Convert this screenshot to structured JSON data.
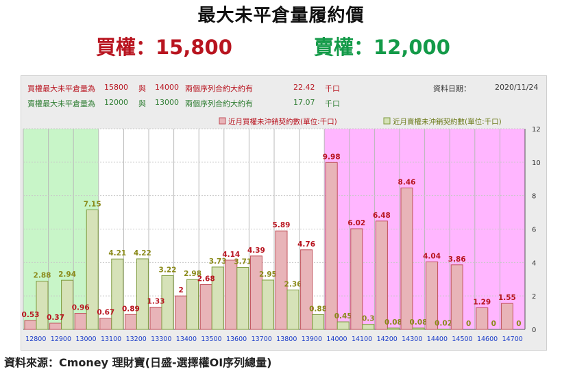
{
  "header": {
    "title": "最大未平倉量履約價",
    "call_headline": "買權：15,800",
    "put_headline": "賣權：12,000"
  },
  "info": {
    "call_row": [
      "買權最大未平倉量為",
      "15800",
      "與",
      "14000",
      "兩個序列合約大約有",
      "22.42",
      "千口"
    ],
    "put_row": [
      "賣權最大未平倉量為",
      "12000",
      "與",
      "13000",
      "兩個序列合約大約有",
      "17.07",
      "千口"
    ],
    "date_label": "資料日期：",
    "date_value": "2020/11/24"
  },
  "footer": {
    "source": "資料來源：Cmoney 理財寶(日盛-選擇權OI序列總量)"
  },
  "colors": {
    "call_fill": "#e8b4b8",
    "call_stroke": "#c0505a",
    "call_label": "#b8141f",
    "put_fill": "#d6e2b8",
    "put_stroke": "#7d9a3c",
    "put_label": "#8a8a1a",
    "left_zone": "#c8f5c8",
    "right_zone": "#ffb6ff"
  },
  "chart_data": {
    "type": "bar",
    "categories": [
      "12800",
      "12900",
      "13000",
      "13100",
      "13200",
      "13300",
      "13400",
      "13500",
      "13600",
      "13700",
      "13800",
      "13900",
      "14000",
      "14100",
      "14200",
      "14300",
      "14400",
      "14500",
      "14600",
      "14700"
    ],
    "series": [
      {
        "name": "近月買權未沖銷契約數(單位:千口)",
        "values": [
          0.53,
          0.37,
          0.96,
          0.67,
          0.89,
          1.33,
          2,
          2.68,
          4.14,
          4.39,
          5.89,
          4.76,
          9.98,
          6.02,
          6.48,
          8.46,
          4.04,
          3.86,
          1.29,
          1.55
        ]
      },
      {
        "name": "近月賣權未沖銷契約數(單位:千口)",
        "values": [
          2.88,
          2.94,
          7.15,
          4.21,
          4.22,
          3.22,
          2.98,
          3.73,
          3.71,
          2.95,
          2.36,
          0.88,
          0.45,
          0.3,
          0.08,
          0.08,
          0.02,
          0,
          0,
          0
        ]
      }
    ],
    "ylim": [
      0,
      12
    ],
    "y_ticks": [
      0,
      2,
      4,
      6,
      8,
      10,
      12
    ],
    "y_axis_side": "right",
    "legend_position": "top-right",
    "highlight_zones": [
      {
        "from": "12800",
        "to": "13000",
        "color": "green"
      },
      {
        "from": "14000",
        "to": "14700",
        "color": "magenta"
      }
    ]
  }
}
